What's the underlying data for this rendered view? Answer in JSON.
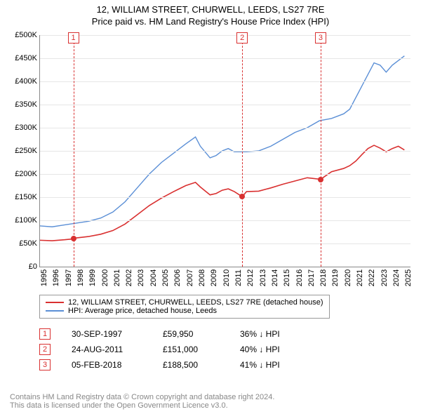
{
  "title_line1": "12, WILLIAM STREET, CHURWELL, LEEDS, LS27 7RE",
  "title_line2": "Price paid vs. HM Land Registry's House Price Index (HPI)",
  "chart": {
    "type": "line",
    "xlim": [
      1995,
      2025.5
    ],
    "ylim": [
      0,
      500000
    ],
    "ytick_step": 50000,
    "ytick_labels": [
      "£0",
      "£50K",
      "£100K",
      "£150K",
      "£200K",
      "£250K",
      "£300K",
      "£350K",
      "£400K",
      "£450K",
      "£500K"
    ],
    "x_years": [
      1995,
      1996,
      1997,
      1998,
      1999,
      2000,
      2001,
      2002,
      2003,
      2004,
      2005,
      2006,
      2007,
      2008,
      2009,
      2010,
      2011,
      2012,
      2013,
      2014,
      2015,
      2016,
      2017,
      2018,
      2019,
      2020,
      2021,
      2022,
      2023,
      2024,
      2025
    ],
    "background_color": "#ffffff",
    "grid_color": "#e6e6e6",
    "series": [
      {
        "name": "HPI: Average price, detached house, Leeds",
        "color": "#5B8FD6",
        "width": 1.4,
        "data": [
          [
            1995,
            88000
          ],
          [
            1996,
            86000
          ],
          [
            1997,
            90000
          ],
          [
            1998,
            94000
          ],
          [
            1999,
            98000
          ],
          [
            2000,
            105000
          ],
          [
            2001,
            118000
          ],
          [
            2002,
            140000
          ],
          [
            2003,
            170000
          ],
          [
            2004,
            200000
          ],
          [
            2005,
            225000
          ],
          [
            2006,
            245000
          ],
          [
            2007,
            265000
          ],
          [
            2007.8,
            280000
          ],
          [
            2008.2,
            260000
          ],
          [
            2009,
            235000
          ],
          [
            2009.5,
            240000
          ],
          [
            2010,
            250000
          ],
          [
            2010.5,
            255000
          ],
          [
            2011,
            248000
          ],
          [
            2012,
            248000
          ],
          [
            2013,
            250000
          ],
          [
            2014,
            260000
          ],
          [
            2015,
            275000
          ],
          [
            2016,
            290000
          ],
          [
            2017,
            300000
          ],
          [
            2018,
            315000
          ],
          [
            2019,
            320000
          ],
          [
            2020,
            330000
          ],
          [
            2020.5,
            340000
          ],
          [
            2021,
            365000
          ],
          [
            2021.5,
            390000
          ],
          [
            2022,
            415000
          ],
          [
            2022.5,
            440000
          ],
          [
            2023,
            435000
          ],
          [
            2023.5,
            420000
          ],
          [
            2024,
            435000
          ],
          [
            2024.5,
            445000
          ],
          [
            2025,
            455000
          ]
        ]
      },
      {
        "name": "12, WILLIAM STREET, CHURWELL, LEEDS, LS27 7RE (detached house)",
        "color": "#D93030",
        "width": 1.6,
        "data": [
          [
            1995,
            57000
          ],
          [
            1996,
            56000
          ],
          [
            1997,
            58000
          ],
          [
            1997.75,
            59950
          ],
          [
            1998,
            62000
          ],
          [
            1999,
            65000
          ],
          [
            2000,
            70000
          ],
          [
            2001,
            78000
          ],
          [
            2002,
            92000
          ],
          [
            2003,
            112000
          ],
          [
            2004,
            132000
          ],
          [
            2005,
            148000
          ],
          [
            2006,
            162000
          ],
          [
            2007,
            175000
          ],
          [
            2007.8,
            182000
          ],
          [
            2008.2,
            172000
          ],
          [
            2009,
            155000
          ],
          [
            2009.5,
            158000
          ],
          [
            2010,
            165000
          ],
          [
            2010.5,
            168000
          ],
          [
            2011,
            162000
          ],
          [
            2011.65,
            151000
          ],
          [
            2012,
            162000
          ],
          [
            2013,
            163000
          ],
          [
            2014,
            170000
          ],
          [
            2015,
            178000
          ],
          [
            2016,
            185000
          ],
          [
            2017,
            192000
          ],
          [
            2018.1,
            188500
          ],
          [
            2019,
            205000
          ],
          [
            2020,
            212000
          ],
          [
            2020.5,
            218000
          ],
          [
            2021,
            228000
          ],
          [
            2021.5,
            242000
          ],
          [
            2022,
            255000
          ],
          [
            2022.5,
            262000
          ],
          [
            2023,
            256000
          ],
          [
            2023.5,
            248000
          ],
          [
            2024,
            255000
          ],
          [
            2024.5,
            260000
          ],
          [
            2025,
            252000
          ]
        ]
      }
    ],
    "sale_markers": [
      {
        "n": "1",
        "x": 1997.75,
        "y": 59950,
        "color": "#D93030"
      },
      {
        "n": "2",
        "x": 2011.65,
        "y": 151000,
        "color": "#D93030"
      },
      {
        "n": "3",
        "x": 2018.1,
        "y": 188500,
        "color": "#D93030"
      }
    ]
  },
  "legend_items": [
    {
      "color": "#D93030",
      "label": "12, WILLIAM STREET, CHURWELL, LEEDS, LS27 7RE (detached house)"
    },
    {
      "color": "#5B8FD6",
      "label": "HPI: Average price, detached house, Leeds"
    }
  ],
  "sales_rows": [
    {
      "n": "1",
      "color": "#D93030",
      "date": "30-SEP-1997",
      "price": "£59,950",
      "pct": "36% ↓ HPI"
    },
    {
      "n": "2",
      "color": "#D93030",
      "date": "24-AUG-2011",
      "price": "£151,000",
      "pct": "40% ↓ HPI"
    },
    {
      "n": "3",
      "color": "#D93030",
      "date": "05-FEB-2018",
      "price": "£188,500",
      "pct": "41% ↓ HPI"
    }
  ],
  "footer_line1": "Contains HM Land Registry data © Crown copyright and database right 2024.",
  "footer_line2": "This data is licensed under the Open Government Licence v3.0."
}
